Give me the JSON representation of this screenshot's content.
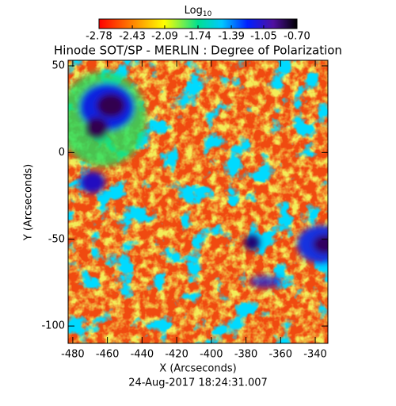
{
  "chart_data": {
    "type": "image",
    "title": "Hinode SOT/SP - MERLIN : Degree of Polarization",
    "x_label": "X (Arcseconds)",
    "y_label": "Y (Arcseconds)",
    "date": "24-Aug-2017 18:24:31.007",
    "colorbar": {
      "label": "Log",
      "label_sub": "10",
      "lim": [
        -2.78,
        -0.7
      ],
      "ticks": [
        -2.78,
        -2.43,
        -2.09,
        -1.74,
        -1.39,
        -1.05,
        {
          "value": -0.7,
          "label": "-0.70"
        }
      ]
    },
    "xlim": [
      -482.7,
      -332.7
    ],
    "xticks": [
      -480,
      -460,
      -440,
      -420,
      -400,
      -380,
      -360,
      -340
    ],
    "ylim": [
      -110,
      53.2
    ],
    "yticks": [
      50,
      0,
      -50,
      -100
    ]
  }
}
